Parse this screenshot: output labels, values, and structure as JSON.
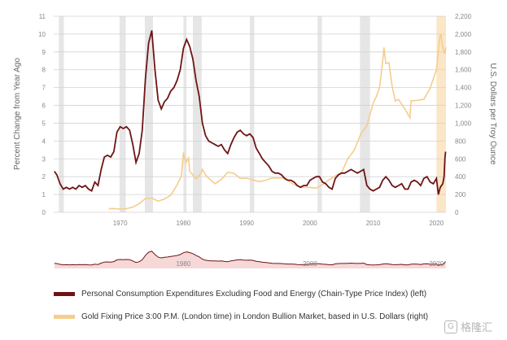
{
  "colors": {
    "pce": "#6e1414",
    "gold": "#f5cd8c",
    "recession": "#e6e6e6",
    "highlight": "#fbe6c7",
    "grid": "#d2d2d2",
    "brush_fill": "#f2c7c7"
  },
  "chart_data": {
    "type": "line",
    "x_range": [
      1959.5,
      2021.5
    ],
    "y_left": {
      "label": "Percent Change from Year Ago",
      "range": [
        0,
        11
      ],
      "ticks": [
        "0",
        "1",
        "2",
        "3",
        "4",
        "5",
        "6",
        "7",
        "8",
        "9",
        "10",
        "11"
      ]
    },
    "y_right": {
      "label": "U.S. Dollars per Troy Ounce",
      "range": [
        0,
        2200
      ],
      "ticks": [
        "0",
        "200",
        "400",
        "600",
        "800",
        "1,000",
        "1,200",
        "1,400",
        "1,600",
        "1,800",
        "2,000",
        "2,200"
      ]
    },
    "x_ticks": [
      "1970",
      "1980",
      "1990",
      "2000",
      "2010",
      "2020"
    ],
    "x_tick_values": [
      1970,
      1980,
      1990,
      2000,
      2010,
      2020
    ],
    "recessions": [
      [
        1960.3,
        1961.1
      ],
      [
        1969.9,
        1970.9
      ],
      [
        1973.9,
        1975.2
      ],
      [
        1980.0,
        1980.5
      ],
      [
        1981.5,
        1982.9
      ],
      [
        1990.5,
        1991.2
      ],
      [
        2001.2,
        2001.9
      ],
      [
        2007.9,
        2009.5
      ]
    ],
    "highlight_period": [
      2020.0,
      2021.5
    ],
    "series": [
      {
        "name": "Personal Consumption Expenditures Excluding Food and Energy (Chain-Type Price Index) (left)",
        "axis": "left",
        "points": [
          [
            1959.6,
            2.3
          ],
          [
            1960,
            2.1
          ],
          [
            1960.5,
            1.6
          ],
          [
            1961,
            1.3
          ],
          [
            1961.5,
            1.4
          ],
          [
            1962,
            1.3
          ],
          [
            1962.5,
            1.4
          ],
          [
            1963,
            1.3
          ],
          [
            1963.5,
            1.5
          ],
          [
            1964,
            1.4
          ],
          [
            1964.5,
            1.5
          ],
          [
            1965,
            1.3
          ],
          [
            1965.5,
            1.2
          ],
          [
            1966,
            1.7
          ],
          [
            1966.5,
            1.5
          ],
          [
            1967,
            2.4
          ],
          [
            1967.5,
            3.1
          ],
          [
            1968,
            3.2
          ],
          [
            1968.5,
            3.1
          ],
          [
            1969,
            3.4
          ],
          [
            1969.5,
            4.5
          ],
          [
            1970,
            4.8
          ],
          [
            1970.5,
            4.7
          ],
          [
            1971,
            4.8
          ],
          [
            1971.5,
            4.6
          ],
          [
            1972,
            3.8
          ],
          [
            1972.5,
            2.8
          ],
          [
            1973,
            3.3
          ],
          [
            1973.5,
            4.6
          ],
          [
            1974,
            7.5
          ],
          [
            1974.5,
            9.5
          ],
          [
            1975,
            10.2
          ],
          [
            1975.5,
            8.0
          ],
          [
            1976,
            6.3
          ],
          [
            1976.5,
            5.8
          ],
          [
            1977,
            6.2
          ],
          [
            1977.5,
            6.4
          ],
          [
            1978,
            6.8
          ],
          [
            1978.5,
            7.0
          ],
          [
            1979,
            7.4
          ],
          [
            1979.5,
            8.0
          ],
          [
            1980,
            9.2
          ],
          [
            1980.5,
            9.7
          ],
          [
            1981,
            9.3
          ],
          [
            1981.5,
            8.6
          ],
          [
            1982,
            7.4
          ],
          [
            1982.5,
            6.5
          ],
          [
            1983,
            5.0
          ],
          [
            1983.5,
            4.3
          ],
          [
            1984,
            4.0
          ],
          [
            1984.5,
            3.9
          ],
          [
            1985,
            3.8
          ],
          [
            1985.5,
            3.7
          ],
          [
            1986,
            3.8
          ],
          [
            1986.5,
            3.5
          ],
          [
            1987,
            3.3
          ],
          [
            1987.5,
            3.8
          ],
          [
            1988,
            4.2
          ],
          [
            1988.5,
            4.5
          ],
          [
            1989,
            4.6
          ],
          [
            1989.5,
            4.4
          ],
          [
            1990,
            4.3
          ],
          [
            1990.5,
            4.4
          ],
          [
            1991,
            4.2
          ],
          [
            1991.5,
            3.6
          ],
          [
            1992,
            3.3
          ],
          [
            1992.5,
            3.0
          ],
          [
            1993,
            2.8
          ],
          [
            1993.5,
            2.6
          ],
          [
            1994,
            2.3
          ],
          [
            1994.5,
            2.2
          ],
          [
            1995,
            2.2
          ],
          [
            1995.5,
            2.1
          ],
          [
            1996,
            1.9
          ],
          [
            1996.5,
            1.8
          ],
          [
            1997,
            1.8
          ],
          [
            1997.5,
            1.7
          ],
          [
            1998,
            1.5
          ],
          [
            1998.5,
            1.4
          ],
          [
            1999,
            1.5
          ],
          [
            1999.5,
            1.5
          ],
          [
            2000,
            1.8
          ],
          [
            2000.5,
            1.9
          ],
          [
            2001,
            2.0
          ],
          [
            2001.5,
            2.0
          ],
          [
            2002,
            1.7
          ],
          [
            2002.5,
            1.6
          ],
          [
            2003,
            1.4
          ],
          [
            2003.5,
            1.3
          ],
          [
            2004,
            1.9
          ],
          [
            2004.5,
            2.1
          ],
          [
            2005,
            2.2
          ],
          [
            2005.5,
            2.2
          ],
          [
            2006,
            2.3
          ],
          [
            2006.5,
            2.4
          ],
          [
            2007,
            2.3
          ],
          [
            2007.5,
            2.2
          ],
          [
            2008,
            2.3
          ],
          [
            2008.5,
            2.4
          ],
          [
            2009,
            1.5
          ],
          [
            2009.5,
            1.3
          ],
          [
            2010,
            1.2
          ],
          [
            2010.5,
            1.3
          ],
          [
            2011,
            1.4
          ],
          [
            2011.5,
            1.8
          ],
          [
            2012,
            2.0
          ],
          [
            2012.5,
            1.8
          ],
          [
            2013,
            1.5
          ],
          [
            2013.5,
            1.4
          ],
          [
            2014,
            1.5
          ],
          [
            2014.5,
            1.6
          ],
          [
            2015,
            1.3
          ],
          [
            2015.5,
            1.3
          ],
          [
            2016,
            1.7
          ],
          [
            2016.5,
            1.8
          ],
          [
            2017,
            1.7
          ],
          [
            2017.5,
            1.5
          ],
          [
            2018,
            1.9
          ],
          [
            2018.5,
            2.0
          ],
          [
            2019,
            1.7
          ],
          [
            2019.5,
            1.6
          ],
          [
            2020,
            1.9
          ],
          [
            2020.3,
            1.0
          ],
          [
            2020.6,
            1.4
          ],
          [
            2021,
            1.6
          ],
          [
            2021.2,
            2.0
          ],
          [
            2021.35,
            3.1
          ],
          [
            2021.45,
            3.4
          ]
        ]
      },
      {
        "name": "Gold Fixing Price 3:00 P.M. (London time) in London Bullion Market, based in U.S. Dollars (right)",
        "axis": "right",
        "points": [
          [
            1968.2,
            40
          ],
          [
            1969,
            42
          ],
          [
            1970,
            36
          ],
          [
            1971,
            41
          ],
          [
            1972,
            58
          ],
          [
            1973,
            97
          ],
          [
            1974,
            154
          ],
          [
            1975,
            160
          ],
          [
            1976,
            125
          ],
          [
            1977,
            148
          ],
          [
            1978,
            193
          ],
          [
            1979,
            306
          ],
          [
            1979.7,
            410
          ],
          [
            1980,
            670
          ],
          [
            1980.4,
            560
          ],
          [
            1980.8,
            610
          ],
          [
            1981,
            460
          ],
          [
            1981.5,
            420
          ],
          [
            1982,
            375
          ],
          [
            1982.8,
            440
          ],
          [
            1983,
            480
          ],
          [
            1983.5,
            420
          ],
          [
            1984,
            380
          ],
          [
            1985,
            320
          ],
          [
            1986,
            368
          ],
          [
            1987,
            450
          ],
          [
            1988,
            437
          ],
          [
            1989,
            381
          ],
          [
            1990,
            384
          ],
          [
            1991,
            362
          ],
          [
            1992,
            344
          ],
          [
            1993,
            360
          ],
          [
            1994,
            384
          ],
          [
            1995,
            384
          ],
          [
            1996,
            388
          ],
          [
            1997,
            331
          ],
          [
            1998,
            294
          ],
          [
            1999,
            279
          ],
          [
            2000,
            279
          ],
          [
            2001,
            271
          ],
          [
            2002,
            310
          ],
          [
            2003,
            363
          ],
          [
            2004,
            409
          ],
          [
            2005,
            445
          ],
          [
            2006,
            604
          ],
          [
            2007,
            697
          ],
          [
            2008,
            872
          ],
          [
            2009,
            972
          ],
          [
            2010,
            1225
          ],
          [
            2010.5,
            1300
          ],
          [
            2011,
            1400
          ],
          [
            2011.5,
            1700
          ],
          [
            2011.7,
            1850
          ],
          [
            2012,
            1669
          ],
          [
            2012.5,
            1680
          ],
          [
            2013,
            1411
          ],
          [
            2013.5,
            1250
          ],
          [
            2014,
            1266
          ],
          [
            2015,
            1160
          ],
          [
            2015.8,
            1060
          ],
          [
            2016,
            1251
          ],
          [
            2017,
            1257
          ],
          [
            2018,
            1268
          ],
          [
            2019,
            1393
          ],
          [
            2019.5,
            1500
          ],
          [
            2020,
            1600
          ],
          [
            2020.5,
            1950
          ],
          [
            2020.7,
            2000
          ],
          [
            2021,
            1850
          ],
          [
            2021.3,
            1780
          ],
          [
            2021.5,
            1850
          ]
        ]
      }
    ],
    "brush_x_ticks": [
      "1980",
      "2000",
      "2020"
    ],
    "brush_x_tick_values": [
      1980,
      2000,
      2020
    ]
  },
  "legend": {
    "pce_label": "Personal Consumption Expenditures Excluding Food and Energy (Chain-Type Price Index) (left)",
    "gold_label": "Gold Fixing Price 3:00 P.M. (London time) in London Bullion Market, based in U.S. Dollars (right)"
  },
  "watermark": {
    "text": "格隆汇",
    "icon": "G"
  }
}
